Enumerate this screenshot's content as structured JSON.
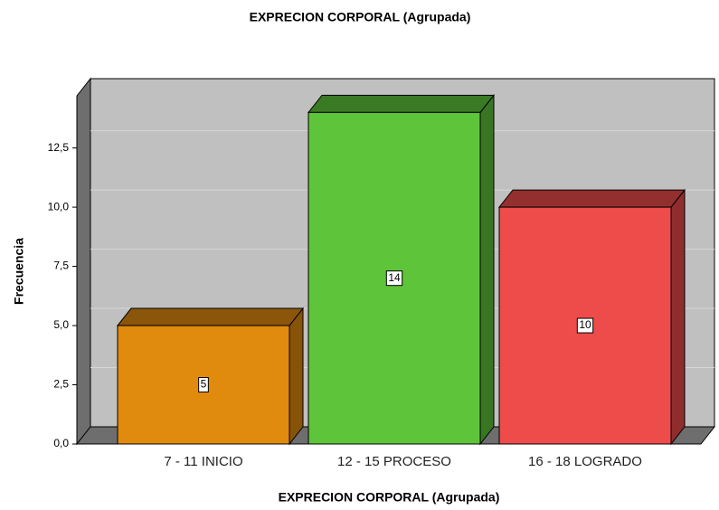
{
  "chart_data": {
    "type": "bar3d",
    "title": "EXPRECION CORPORAL (Agrupada)",
    "x_label": "EXPRECION CORPORAL (Agrupada)",
    "y_label": "Frecuencia",
    "categories": [
      "7 - 11 INICIO",
      "12 - 15 PROCESO",
      "16 - 18 LOGRADO"
    ],
    "values": [
      5,
      14,
      10
    ],
    "colors": [
      "#e08a0e",
      "#5ec43a",
      "#ee4b4b"
    ],
    "ylim": [
      0,
      14.7
    ],
    "yticks": [
      {
        "value": 0,
        "label": "0,0"
      },
      {
        "value": 2.5,
        "label": "2,5"
      },
      {
        "value": 5,
        "label": "5,0"
      },
      {
        "value": 7.5,
        "label": "7,5"
      },
      {
        "value": 10,
        "label": "10,0"
      },
      {
        "value": 12.5,
        "label": "12,5"
      }
    ],
    "grid": true
  }
}
